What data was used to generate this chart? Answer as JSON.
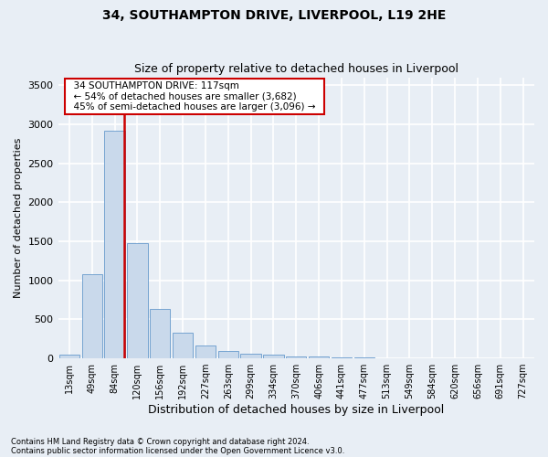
{
  "title_line1": "34, SOUTHAMPTON DRIVE, LIVERPOOL, L19 2HE",
  "title_line2": "Size of property relative to detached houses in Liverpool",
  "xlabel": "Distribution of detached houses by size in Liverpool",
  "ylabel": "Number of detached properties",
  "annotation_line1": "34 SOUTHAMPTON DRIVE: 117sqm",
  "annotation_line2": "← 54% of detached houses are smaller (3,682)",
  "annotation_line3": "45% of semi-detached houses are larger (3,096) →",
  "footnote1": "Contains HM Land Registry data © Crown copyright and database right 2024.",
  "footnote2": "Contains public sector information licensed under the Open Government Licence v3.0.",
  "bar_color": "#c9d9eb",
  "bar_edge_color": "#6699cc",
  "vline_color": "#cc0000",
  "annotation_box_edge_color": "#cc0000",
  "background_color": "#e8eef5",
  "grid_color": "#ffffff",
  "categories": [
    "13sqm",
    "49sqm",
    "84sqm",
    "120sqm",
    "156sqm",
    "192sqm",
    "227sqm",
    "263sqm",
    "299sqm",
    "334sqm",
    "370sqm",
    "406sqm",
    "441sqm",
    "477sqm",
    "513sqm",
    "549sqm",
    "584sqm",
    "620sqm",
    "656sqm",
    "691sqm",
    "727sqm"
  ],
  "values": [
    50,
    1080,
    2920,
    1480,
    630,
    330,
    160,
    95,
    65,
    50,
    30,
    25,
    15,
    10,
    5,
    3,
    2,
    1,
    1,
    0,
    0
  ],
  "vline_x": 2.42,
  "ylim": [
    0,
    3600
  ],
  "yticks": [
    0,
    500,
    1000,
    1500,
    2000,
    2500,
    3000,
    3500
  ]
}
